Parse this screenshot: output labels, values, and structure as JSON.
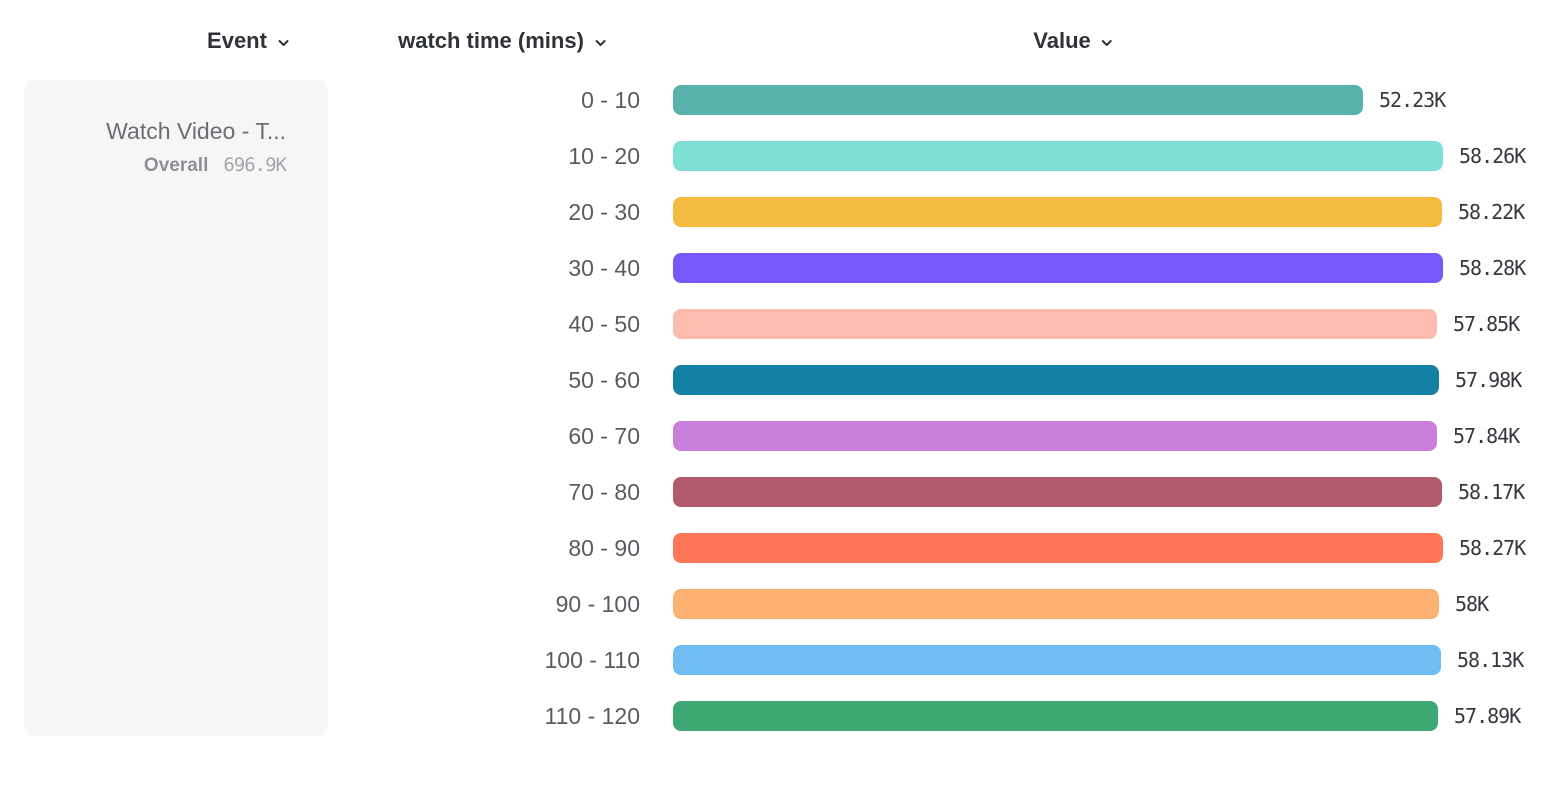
{
  "headers": {
    "event": {
      "label": "Event"
    },
    "dimension": {
      "label": "watch time (mins)"
    },
    "value": {
      "label": "Value"
    }
  },
  "event_card": {
    "title": "Watch Video - T...",
    "overall_label": "Overall",
    "overall_value": "696.9K"
  },
  "chart_data": {
    "type": "bar",
    "orientation": "horizontal",
    "title": "",
    "xlabel": "Value",
    "ylabel": "watch time (mins)",
    "categories": [
      "0 - 10",
      "10 - 20",
      "20 - 30",
      "30 - 40",
      "40 - 50",
      "50 - 60",
      "60 - 70",
      "70 - 80",
      "80 - 90",
      "90 - 100",
      "100 - 110",
      "110 - 120"
    ],
    "values": [
      52230,
      58260,
      58220,
      58280,
      57850,
      57980,
      57840,
      58170,
      58270,
      58000,
      58130,
      57890
    ],
    "value_labels": [
      "52.23K",
      "58.26K",
      "58.22K",
      "58.28K",
      "57.85K",
      "57.98K",
      "57.84K",
      "58.17K",
      "58.27K",
      "58K",
      "58.13K",
      "57.89K"
    ],
    "colors": [
      "#57B3AC",
      "#7FE0D6",
      "#F5BB40",
      "#7857FB",
      "#FEBCB1",
      "#1480A1",
      "#C77FDB",
      "#B25A6E",
      "#FF7557",
      "#FFB172",
      "#70BCF3",
      "#3DA871"
    ],
    "xlim": [
      0,
      58280
    ],
    "grid": false,
    "legend": "none"
  }
}
